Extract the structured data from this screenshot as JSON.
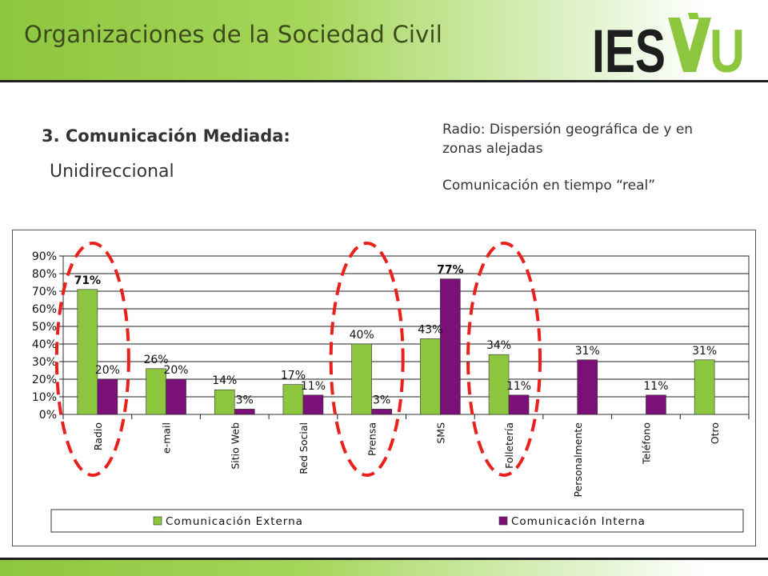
{
  "slide": {
    "title": "Organizaciones de la Sociedad Civil",
    "subtitle": "3. Comunicación Mediada:",
    "subsubtitle": "Unidireccional",
    "note1": "Radio: Dispersión geográfica de y en zonas alejadas",
    "note2": "Comunicación en tiempo “real”"
  },
  "logo": {
    "text_left": "IES",
    "text_right": "U",
    "colors": {
      "dark": "#1e1e1e",
      "green": "#8dc63f"
    }
  },
  "chart_data": {
    "type": "bar",
    "categories": [
      "Radio",
      "e-mail",
      "Sitio Web",
      "Red Social",
      "Prensa",
      "SMS",
      "Folletería",
      "Personalmente",
      "Teléfono",
      "Otro"
    ],
    "series": [
      {
        "name": "Comunicación Externa",
        "color": "#8cc63f",
        "values": [
          71,
          26,
          14,
          17,
          40,
          43,
          34,
          null,
          null,
          31
        ]
      },
      {
        "name": "Comunicación Interna",
        "color": "#7b1178",
        "values": [
          20,
          20,
          3,
          11,
          3,
          77,
          11,
          31,
          11,
          null
        ]
      }
    ],
    "data_labels": {
      "Comunicación Externa": [
        "71%",
        "26%",
        "14%",
        "17%",
        "40%",
        "43%",
        "34%",
        "",
        "",
        "31%"
      ],
      "Comunicación Interna": [
        "20%",
        "20%",
        "3%",
        "11%",
        "3%",
        "77%",
        "11%",
        "31%",
        "11%",
        ""
      ]
    },
    "y_ticks": [
      "0%",
      "10%",
      "20%",
      "30%",
      "40%",
      "50%",
      "60%",
      "70%",
      "80%",
      "90%"
    ],
    "ylim": [
      0,
      90
    ],
    "grid": true,
    "legend": "bottom",
    "highlighted_categories": [
      "Radio",
      "Prensa",
      "Folletería"
    ],
    "highlight_color": "#e8211d"
  }
}
